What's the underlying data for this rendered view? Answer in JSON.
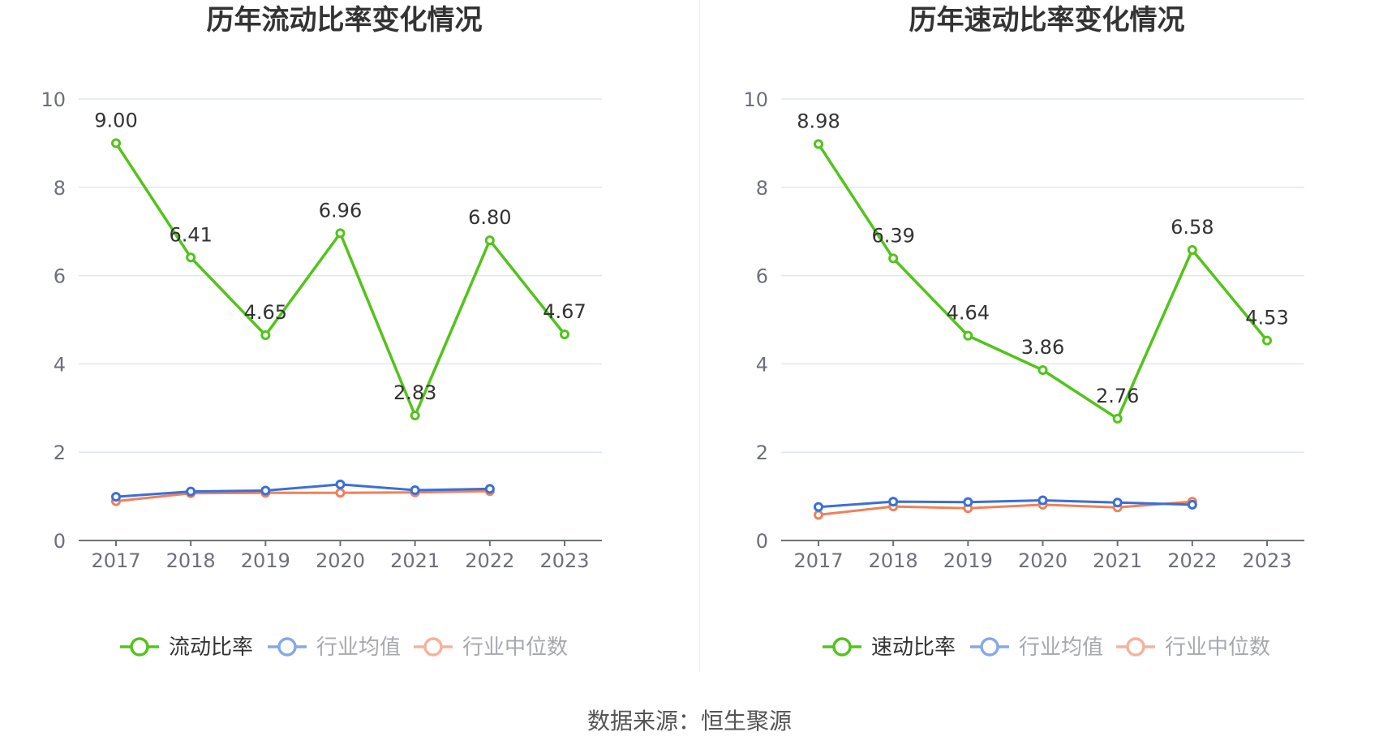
{
  "source_text": "数据来源：恒生聚源",
  "chart_data": [
    {
      "type": "line",
      "title": "历年流动比率变化情况",
      "x": [
        "2017",
        "2018",
        "2019",
        "2020",
        "2021",
        "2022",
        "2023"
      ],
      "ylim": [
        0,
        10
      ],
      "yticks": [
        0,
        2,
        4,
        6,
        8,
        10
      ],
      "grid": true,
      "legend_position": "bottom-center",
      "series": [
        {
          "name": "流动比率",
          "color": "#52c41a",
          "values": [
            9.0,
            6.41,
            4.65,
            6.96,
            2.83,
            6.8,
            4.67
          ],
          "labels": [
            "9.00",
            "6.41",
            "4.65",
            "6.96",
            "2.83",
            "6.80",
            "4.67"
          ]
        },
        {
          "name": "行业均值",
          "color": "#3a6fd8",
          "values": [
            0.99,
            1.11,
            1.13,
            1.27,
            1.14,
            1.17,
            null
          ]
        },
        {
          "name": "行业中位数",
          "color": "#f0805a",
          "values": [
            0.89,
            1.07,
            1.08,
            1.08,
            1.09,
            1.12,
            null
          ]
        }
      ]
    },
    {
      "type": "line",
      "title": "历年速动比率变化情况",
      "x": [
        "2017",
        "2018",
        "2019",
        "2020",
        "2021",
        "2022",
        "2023"
      ],
      "ylim": [
        0,
        10
      ],
      "yticks": [
        0,
        2,
        4,
        6,
        8,
        10
      ],
      "grid": true,
      "legend_position": "bottom-center",
      "series": [
        {
          "name": "速动比率",
          "color": "#52c41a",
          "values": [
            8.98,
            6.39,
            4.64,
            3.86,
            2.76,
            6.58,
            4.53
          ],
          "labels": [
            "8.98",
            "6.39",
            "4.64",
            "3.86",
            "2.76",
            "6.58",
            "4.53"
          ]
        },
        {
          "name": "行业均值",
          "color": "#3a6fd8",
          "values": [
            0.76,
            0.88,
            0.87,
            0.91,
            0.86,
            0.81,
            null
          ]
        },
        {
          "name": "行业中位数",
          "color": "#f0805a",
          "values": [
            0.58,
            0.77,
            0.73,
            0.81,
            0.75,
            0.88,
            null
          ]
        }
      ]
    }
  ]
}
